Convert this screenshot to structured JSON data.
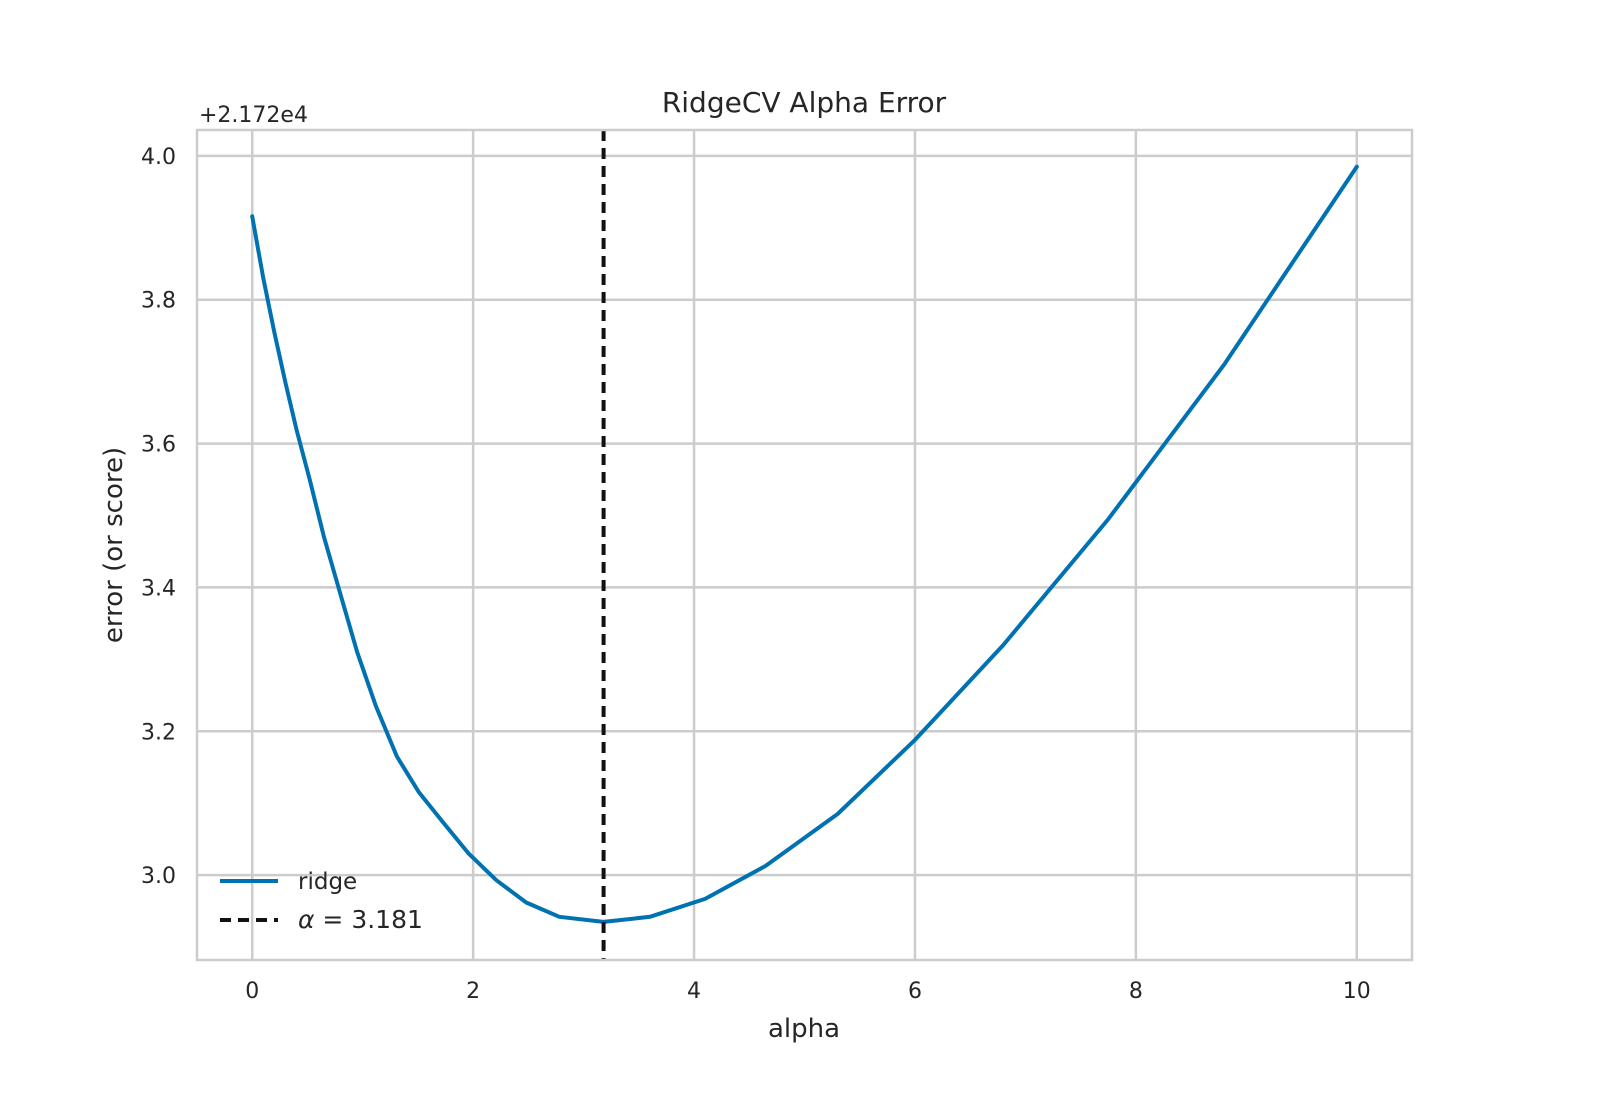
{
  "chart_data": {
    "type": "line",
    "title": "RidgeCV Alpha Error",
    "xlabel": "alpha",
    "ylabel": "error (or score)",
    "offset_label": "+2.172e4",
    "y_offset": 21720,
    "xlim": [
      -0.5,
      10.5
    ],
    "ylim": [
      2.882,
      4.036
    ],
    "xticks": [
      0,
      2,
      4,
      6,
      8,
      10
    ],
    "xtick_labels": [
      "0",
      "2",
      "4",
      "6",
      "8",
      "10"
    ],
    "yticks": [
      3.0,
      3.2,
      3.4,
      3.6,
      3.8,
      4.0
    ],
    "ytick_labels": [
      "3.0",
      "3.2",
      "3.4",
      "3.6",
      "3.8",
      "4.0"
    ],
    "grid": true,
    "legend_position": "lower-left",
    "series": [
      {
        "name": "ridge",
        "color": "#0072b2",
        "x": [
          0.0,
          0.1,
          0.2,
          0.3,
          0.4,
          0.52,
          0.65,
          0.79,
          0.95,
          1.12,
          1.31,
          1.51,
          1.73,
          1.96,
          2.21,
          2.48,
          2.78,
          3.18,
          3.6,
          4.1,
          4.65,
          5.3,
          6.0,
          6.8,
          7.75,
          8.8,
          10.0
        ],
        "y": [
          3.916,
          3.83,
          3.755,
          3.685,
          3.62,
          3.55,
          3.47,
          3.395,
          3.31,
          3.235,
          3.165,
          3.115,
          3.073,
          3.03,
          2.993,
          2.962,
          2.942,
          2.935,
          2.942,
          2.967,
          3.013,
          3.085,
          3.188,
          3.32,
          3.495,
          3.71,
          3.985
        ]
      }
    ],
    "annotations": [
      {
        "type": "vline",
        "x": 3.181,
        "style": "dashed",
        "color": "#111111",
        "label_prefix": "α = ",
        "label_value": "3.181"
      }
    ]
  }
}
